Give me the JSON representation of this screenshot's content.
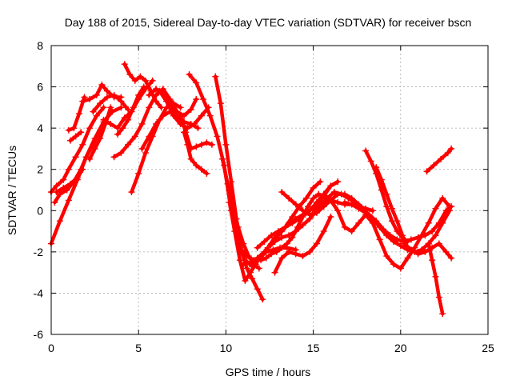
{
  "chart_data": {
    "type": "scatter",
    "title": "Day 188 of 2015, Sidereal Day-to-day VTEC variation (SDTVAR) for receiver bscn",
    "xlabel": "GPS time / hours",
    "ylabel": "SDTVAR / TECUs",
    "xlim": [
      0,
      25
    ],
    "ylim": [
      -6,
      8
    ],
    "xticks": [
      0,
      5,
      10,
      15,
      20,
      25
    ],
    "yticks": [
      -6,
      -4,
      -2,
      0,
      2,
      4,
      6,
      8
    ],
    "grid": true,
    "marker": "+",
    "color": "#ff0000",
    "series": [
      {
        "x": [
          0.0,
          0.5,
          1.0,
          1.5,
          2.0,
          2.5,
          3.0,
          3.5,
          4.0
        ],
        "y": [
          -1.6,
          -0.5,
          0.5,
          1.5,
          2.6,
          3.5,
          4.3,
          4.8,
          5.0
        ]
      },
      {
        "x": [
          0.0,
          0.3,
          0.7,
          1.0,
          1.4,
          1.8,
          2.2,
          2.6,
          3.0
        ],
        "y": [
          0.9,
          1.2,
          1.5,
          2.0,
          2.6,
          3.2,
          4.0,
          4.6,
          5.0
        ]
      },
      {
        "x": [
          0.2,
          0.5,
          0.9,
          1.3,
          1.7,
          2.0,
          2.4,
          2.8,
          3.1
        ],
        "y": [
          0.4,
          0.8,
          1.0,
          1.4,
          2.0,
          2.6,
          3.2,
          3.9,
          4.4
        ]
      },
      {
        "x": [
          0.3,
          0.7,
          1.1,
          1.5,
          1.8
        ],
        "y": [
          0.9,
          1.1,
          1.3,
          1.6,
          2.0
        ]
      },
      {
        "x": [
          1.0,
          1.3,
          1.6,
          1.9
        ],
        "y": [
          3.9,
          4.0,
          4.7,
          5.5
        ]
      },
      {
        "x": [
          1.1,
          1.4,
          1.7
        ],
        "y": [
          3.4,
          3.6,
          3.8
        ]
      },
      {
        "x": [
          1.8,
          2.2,
          2.6,
          2.9,
          3.2,
          3.6,
          4.0
        ],
        "y": [
          5.3,
          5.4,
          5.6,
          6.1,
          5.8,
          5.5,
          5.5
        ]
      },
      {
        "x": [
          2.2,
          2.5,
          2.8,
          3.1,
          3.4
        ],
        "y": [
          2.5,
          3.0,
          3.5,
          4.2,
          5.0
        ]
      },
      {
        "x": [
          2.4,
          2.8,
          3.2,
          3.6,
          4.0,
          4.4
        ],
        "y": [
          4.8,
          5.2,
          5.5,
          5.6,
          5.3,
          4.9
        ]
      },
      {
        "x": [
          3.0,
          3.4,
          3.8,
          4.2,
          4.6,
          5.0,
          5.4,
          5.8
        ],
        "y": [
          4.4,
          4.2,
          4.0,
          4.5,
          4.8,
          5.4,
          5.9,
          6.3
        ]
      },
      {
        "x": [
          3.8,
          4.1,
          4.4,
          4.7,
          5.0,
          5.3
        ],
        "y": [
          3.7,
          4.0,
          4.4,
          5.0,
          5.6,
          6.0
        ]
      },
      {
        "x": [
          3.6,
          4.0,
          4.4,
          4.8,
          5.2,
          5.6,
          6.0,
          6.4,
          6.8,
          7.2,
          7.6,
          8.0,
          8.3
        ],
        "y": [
          2.6,
          2.8,
          3.2,
          3.6,
          4.2,
          5.0,
          5.6,
          5.9,
          5.4,
          4.8,
          4.6,
          4.9,
          5.4
        ]
      },
      {
        "x": [
          4.2,
          4.5,
          4.8,
          5.1,
          5.4,
          5.7,
          6.0,
          6.3
        ],
        "y": [
          7.1,
          6.6,
          6.3,
          6.5,
          6.3,
          5.8,
          5.3,
          5.0
        ]
      },
      {
        "x": [
          4.6,
          5.0,
          5.4,
          5.8,
          6.2,
          6.6,
          7.0,
          7.4
        ],
        "y": [
          0.9,
          1.8,
          2.8,
          3.6,
          4.4,
          5.0,
          5.2,
          5.0
        ]
      },
      {
        "x": [
          5.2,
          5.6,
          6.0,
          6.4,
          6.8,
          7.2,
          7.6
        ],
        "y": [
          3.0,
          3.6,
          4.2,
          4.6,
          4.8,
          4.6,
          4.3
        ]
      },
      {
        "x": [
          5.6,
          6.0,
          6.4,
          6.8,
          7.2,
          7.6,
          8.0,
          8.4
        ],
        "y": [
          5.6,
          5.9,
          5.7,
          5.1,
          4.6,
          4.3,
          4.2,
          4.0
        ]
      },
      {
        "x": [
          6.2,
          6.6,
          7.0,
          7.4,
          7.8,
          8.2,
          8.6,
          9.0
        ],
        "y": [
          5.8,
          5.3,
          4.6,
          4.2,
          4.0,
          4.2,
          4.6,
          5.0
        ]
      },
      {
        "x": [
          7.4,
          7.7,
          8.0,
          8.3,
          8.6,
          8.9,
          9.2
        ],
        "y": [
          4.6,
          3.8,
          3.0,
          3.1,
          3.2,
          3.3,
          3.2
        ]
      },
      {
        "x": [
          7.6,
          7.8,
          8.0,
          8.3,
          8.6,
          8.9
        ],
        "y": [
          3.8,
          3.2,
          2.5,
          2.2,
          2.0,
          1.8
        ]
      },
      {
        "x": [
          7.9,
          8.3,
          8.7,
          9.1,
          9.5,
          9.9,
          10.3,
          10.7,
          11.1,
          11.5,
          11.9,
          12.3,
          12.7,
          13.1,
          13.5,
          14.0
        ],
        "y": [
          6.6,
          6.2,
          5.4,
          4.6,
          3.6,
          2.2,
          0.0,
          -1.6,
          -2.4,
          -2.7,
          -2.3,
          -2.0,
          -1.9,
          -1.8,
          -1.8,
          -1.9
        ]
      },
      {
        "x": [
          9.4,
          9.7,
          10.0,
          10.3,
          10.6,
          10.9,
          11.2,
          11.5,
          11.8,
          12.1
        ],
        "y": [
          6.5,
          5.2,
          3.2,
          1.4,
          -0.4,
          -2.0,
          -2.8,
          -3.3,
          -3.8,
          -4.3
        ]
      },
      {
        "x": [
          9.8,
          10.1,
          10.4,
          10.7,
          11.0,
          11.3,
          11.6,
          11.9
        ],
        "y": [
          2.5,
          1.3,
          0.2,
          -0.8,
          -1.6,
          -2.2,
          -2.6,
          -2.8
        ]
      },
      {
        "x": [
          10.2,
          10.5,
          10.8,
          11.1,
          11.4,
          11.7,
          12.0,
          12.4,
          12.8,
          13.2,
          13.6,
          14.0,
          14.4,
          14.8,
          15.2,
          15.6,
          16.0,
          16.4
        ],
        "y": [
          0.4,
          -1.0,
          -2.4,
          -3.4,
          -3.0,
          -2.6,
          -2.2,
          -1.8,
          -1.5,
          -1.3,
          -1.2,
          -1.0,
          -0.7,
          -0.4,
          0.2,
          0.7,
          1.2,
          1.4
        ]
      },
      {
        "x": [
          10.8,
          11.2,
          11.6,
          12.0,
          12.4,
          12.8,
          13.2,
          13.6,
          14.0,
          14.4,
          14.8,
          15.2,
          15.6,
          16.0,
          16.4
        ],
        "y": [
          -1.8,
          -2.2,
          -2.4,
          -2.3,
          -1.8,
          -1.3,
          -1.0,
          -0.6,
          -0.4,
          -0.2,
          0.0,
          0.4,
          0.8,
          1.2,
          1.4
        ]
      },
      {
        "x": [
          11.0,
          11.4,
          11.8,
          12.2,
          12.6,
          13.0,
          13.4,
          13.8,
          14.2,
          14.6,
          15.0,
          15.4
        ],
        "y": [
          -2.6,
          -2.5,
          -2.3,
          -2.0,
          -1.6,
          -1.2,
          -0.8,
          -0.3,
          0.2,
          0.6,
          1.1,
          1.4
        ]
      },
      {
        "x": [
          11.8,
          12.2,
          12.6,
          13.0,
          13.4,
          13.8,
          14.2,
          14.6
        ],
        "y": [
          -1.8,
          -1.5,
          -1.2,
          -1.0,
          -0.8,
          -0.6,
          -0.4,
          -0.1
        ]
      },
      {
        "x": [
          12.0,
          12.3,
          12.6,
          12.9,
          13.2,
          13.5,
          13.8,
          14.1,
          14.4,
          14.7,
          15.0,
          15.3,
          15.6,
          16.0,
          16.4,
          16.8,
          17.2,
          17.6,
          18.0,
          18.4
        ],
        "y": [
          -2.4,
          -2.3,
          -2.1,
          -2.0,
          -1.8,
          -1.6,
          -1.3,
          -0.8,
          -0.3,
          0.2,
          0.6,
          0.8,
          0.7,
          0.5,
          0.4,
          0.3,
          0.3,
          0.2,
          0.1,
          0.0
        ]
      },
      {
        "x": [
          12.8,
          13.2,
          13.6,
          14.0,
          14.4,
          14.8,
          15.2,
          15.6,
          16.0
        ],
        "y": [
          -3.0,
          -2.3,
          -2.0,
          -2.1,
          -2.2,
          -2.0,
          -1.6,
          -1.0,
          -0.3
        ]
      },
      {
        "x": [
          13.2,
          13.6,
          14.0,
          14.4,
          14.8,
          15.2,
          15.6,
          16.0,
          16.4,
          16.8,
          17.2,
          17.6,
          18.0
        ],
        "y": [
          0.9,
          0.6,
          0.3,
          0.0,
          -0.2,
          -0.1,
          0.2,
          0.5,
          0.8,
          0.8,
          0.6,
          0.3,
          0.0
        ]
      },
      {
        "x": [
          15.0,
          15.4,
          15.8,
          16.2,
          16.6,
          17.0,
          17.4,
          17.8,
          18.2,
          18.6,
          19.0,
          19.4,
          19.8,
          20.2,
          20.6,
          21.0,
          21.4,
          21.8,
          22.2,
          22.6,
          22.9
        ],
        "y": [
          -0.2,
          0.2,
          0.6,
          0.9,
          0.8,
          0.6,
          0.4,
          0.1,
          -0.2,
          -0.5,
          -0.9,
          -1.2,
          -1.4,
          -1.5,
          -1.4,
          -1.3,
          -1.2,
          -1.0,
          -0.6,
          0.0,
          0.2
        ]
      },
      {
        "x": [
          15.6,
          16.0,
          16.4,
          16.8,
          17.2,
          17.6,
          18.0,
          18.4,
          18.8,
          19.2,
          19.6,
          20.0
        ],
        "y": [
          0.8,
          0.5,
          0.0,
          -0.8,
          -1.0,
          -0.6,
          -0.2,
          -0.6,
          -1.4,
          -2.2,
          -2.6,
          -2.8
        ]
      },
      {
        "x": [
          16.8,
          17.2,
          17.6,
          18.0,
          18.4,
          18.8,
          19.2,
          19.6,
          20.0,
          20.4,
          20.8,
          21.2,
          21.6,
          22.0,
          22.4,
          22.8
        ],
        "y": [
          0.4,
          0.3,
          0.1,
          -0.1,
          -0.4,
          -0.8,
          -1.2,
          -1.5,
          -1.7,
          -1.9,
          -2.0,
          -1.9,
          -1.6,
          -1.2,
          -0.6,
          0.0
        ]
      },
      {
        "x": [
          18.0,
          18.3,
          18.6,
          18.9,
          19.2,
          19.5,
          19.8,
          20.1,
          20.4
        ],
        "y": [
          2.9,
          2.4,
          1.8,
          1.0,
          0.2,
          -0.5,
          -1.0,
          -1.3,
          -1.5
        ]
      },
      {
        "x": [
          18.6,
          18.9,
          19.2,
          19.5,
          19.8,
          20.1,
          20.4
        ],
        "y": [
          2.1,
          1.5,
          0.8,
          0.1,
          -0.5,
          -1.2,
          -1.9
        ]
      },
      {
        "x": [
          20.0,
          20.4,
          20.8,
          21.2,
          21.6,
          22.0,
          22.4,
          22.8
        ],
        "y": [
          -2.8,
          -2.3,
          -1.8,
          -1.2,
          -0.6,
          0.1,
          0.6,
          0.2
        ]
      },
      {
        "x": [
          20.2,
          20.6,
          21.0,
          21.4,
          21.8,
          22.2,
          22.6,
          22.9
        ],
        "y": [
          -1.6,
          -1.9,
          -2.1,
          -2.0,
          -1.8,
          -1.6,
          -2.0,
          -2.3
        ]
      },
      {
        "x": [
          21.6,
          21.8,
          22.0,
          22.2,
          22.4
        ],
        "y": [
          -1.6,
          -2.4,
          -3.2,
          -4.2,
          -5.0
        ]
      },
      {
        "x": [
          21.5,
          21.9,
          22.3,
          22.7,
          22.9
        ],
        "y": [
          1.9,
          2.2,
          2.5,
          2.8,
          3.0
        ]
      }
    ]
  }
}
